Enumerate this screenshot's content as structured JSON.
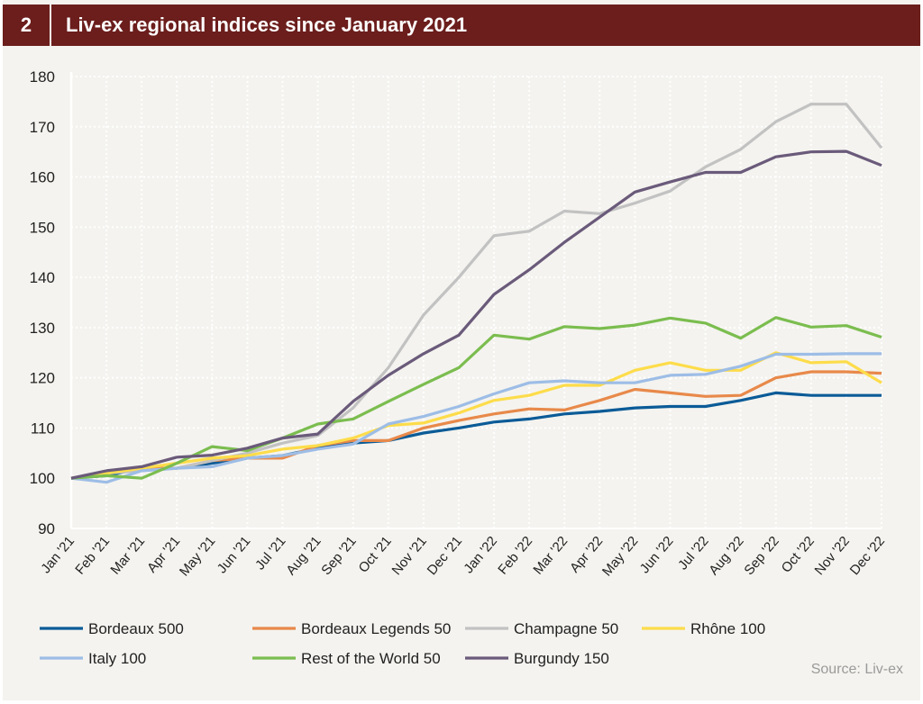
{
  "header": {
    "number": "2",
    "title": "Liv-ex regional indices since January 2021"
  },
  "source": "Source: Liv-ex",
  "chart_data": {
    "type": "line",
    "title": "Liv-ex regional indices since January 2021",
    "xlabel": "",
    "ylabel": "",
    "ylim": [
      90,
      180
    ],
    "yticks": [
      90,
      100,
      110,
      120,
      130,
      140,
      150,
      160,
      170,
      180
    ],
    "grid": true,
    "legend_position": "bottom",
    "categories": [
      "Jan '21",
      "Feb '21",
      "Mar '21",
      "Apr '21",
      "May '21",
      "Jun '21",
      "Jul '21",
      "Aug '21",
      "Sep '21",
      "Oct '21",
      "Nov '21",
      "Dec '21",
      "Jan '22",
      "Feb '22",
      "Mar '22",
      "Apr '22",
      "May '22",
      "Jun '22",
      "Jul '22",
      "Aug '22",
      "Sep '22",
      "Oct '22",
      "Nov '22",
      "Dec '22"
    ],
    "series": [
      {
        "name": "Bordeaux 500",
        "color": "#0b5b97",
        "values": [
          100,
          100.5,
          102,
          102,
          103,
          104,
          104.5,
          106,
          107,
          107.5,
          109,
          110,
          111.2,
          111.8,
          112.8,
          113.3,
          114,
          114.3,
          114.3,
          115.5,
          117,
          116.5,
          116.5,
          116.5
        ]
      },
      {
        "name": "Bordeaux Legends 50",
        "color": "#e8894a",
        "values": [
          100,
          101,
          102,
          102,
          103.5,
          104,
          104,
          106.5,
          107.5,
          107.5,
          110,
          111.5,
          112.8,
          113.8,
          113.6,
          115.5,
          117.7,
          117,
          116.3,
          116.5,
          120,
          121.2,
          121.2,
          120.9
        ]
      },
      {
        "name": "Champagne 50",
        "color": "#c2c2c2",
        "values": [
          100,
          101,
          101.5,
          102,
          103.5,
          105,
          107,
          108.5,
          114,
          122,
          132.5,
          140,
          148.3,
          149.2,
          153.2,
          152.7,
          154.8,
          157.2,
          162,
          165.5,
          171,
          174.5,
          174.5,
          165.8
        ]
      },
      {
        "name": "Rhône 100",
        "color": "#fddc4a",
        "values": [
          100,
          101,
          102,
          103,
          104,
          104.5,
          105.8,
          106.5,
          108,
          110.5,
          111,
          113,
          115.5,
          116.5,
          118.5,
          118.5,
          121.5,
          123,
          121.5,
          121.5,
          125,
          123,
          123.2,
          119
        ]
      },
      {
        "name": "Italy 100",
        "color": "#9dbde6",
        "values": [
          100,
          99.2,
          101.5,
          102,
          102.3,
          104,
          104.5,
          105.8,
          106.8,
          110.8,
          112.3,
          114.3,
          116.8,
          119,
          119.4,
          119,
          119,
          120.5,
          120.7,
          122.3,
          124.7,
          124.7,
          124.8,
          124.8
        ]
      },
      {
        "name": "Rest of the World 50",
        "color": "#7bbd4f",
        "values": [
          100,
          100.5,
          100,
          103,
          106.3,
          105.5,
          108,
          110.8,
          111.8,
          115.3,
          118.7,
          122,
          128.5,
          127.7,
          130.2,
          129.8,
          130.5,
          131.9,
          130.9,
          127.9,
          132,
          130.1,
          130.4,
          128.1
        ]
      },
      {
        "name": "Burgundy 150",
        "color": "#6a5a7a",
        "values": [
          100,
          101.5,
          102.3,
          104.2,
          104.6,
          106,
          108,
          108.8,
          115.3,
          120.5,
          124.8,
          128.5,
          136.6,
          141.5,
          147,
          152,
          157,
          159,
          160.9,
          160.9,
          164,
          165,
          165.1,
          162.3
        ]
      }
    ]
  }
}
